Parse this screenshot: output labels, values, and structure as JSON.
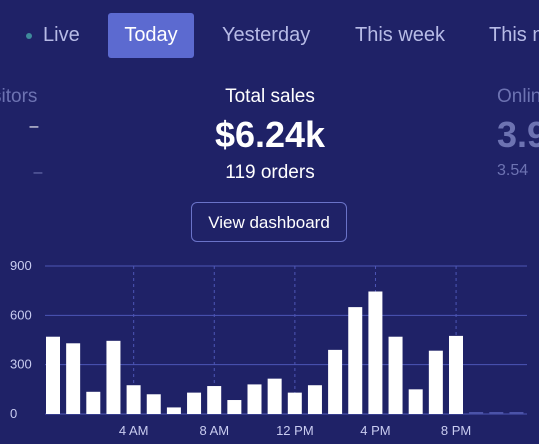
{
  "tabs": [
    {
      "label": "Live",
      "active": false
    },
    {
      "label": "Today",
      "active": true
    },
    {
      "label": "Yesterday",
      "active": false
    },
    {
      "label": "This week",
      "active": false
    },
    {
      "label": "This m",
      "active": false
    }
  ],
  "metrics": {
    "left": {
      "label": "sitors",
      "value": "–",
      "sub": "–"
    },
    "center": {
      "label": "Total sales",
      "value": "$6.24k",
      "sub": "119 orders"
    },
    "right": {
      "label": "Onlin",
      "value": "3.9",
      "sub": "3.54"
    }
  },
  "actions": {
    "view_dashboard": "View dashboard"
  },
  "colors": {
    "background": "#1f2267",
    "active_tab": "#5c6ad0",
    "bar": "#ffffff",
    "grid": "#4d56b6",
    "faded_text": "#6d73b2"
  },
  "chart_data": {
    "type": "bar",
    "y_ticks": [
      "0",
      "300",
      "600",
      "900"
    ],
    "ylim": [
      0,
      900
    ],
    "x_ticks": [
      {
        "label": "4 AM",
        "hour": 4
      },
      {
        "label": "8 AM",
        "hour": 8
      },
      {
        "label": "12 PM",
        "hour": 12
      },
      {
        "label": "4 PM",
        "hour": 16
      },
      {
        "label": "8 PM",
        "hour": 20
      }
    ],
    "hours": [
      0,
      1,
      2,
      3,
      4,
      5,
      6,
      7,
      8,
      9,
      10,
      11,
      12,
      13,
      14,
      15,
      16,
      17,
      18,
      19,
      20,
      21,
      22,
      23
    ],
    "values": [
      470,
      430,
      135,
      445,
      175,
      120,
      40,
      130,
      170,
      85,
      180,
      215,
      130,
      175,
      390,
      650,
      745,
      470,
      150,
      385,
      475,
      0,
      0,
      0
    ],
    "grid": true
  }
}
